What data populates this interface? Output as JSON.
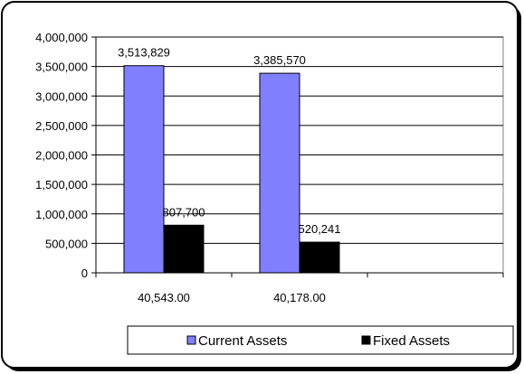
{
  "chart_data": {
    "type": "bar",
    "categories": [
      "40,543.00",
      "40,178.00",
      ""
    ],
    "series": [
      {
        "name": "Current Assets",
        "values": [
          3513829,
          3385570,
          null
        ],
        "labels": [
          "3,513,829",
          "3,385,570",
          ""
        ],
        "color": "#8080ff"
      },
      {
        "name": "Fixed Assets",
        "values": [
          807700,
          520241,
          null
        ],
        "labels": [
          "807,700",
          "520,241",
          ""
        ],
        "color": "#000000"
      }
    ],
    "y_ticks": [
      {
        "value": 0,
        "label": "0"
      },
      {
        "value": 500000,
        "label": "500,000"
      },
      {
        "value": 1000000,
        "label": "1,000,000"
      },
      {
        "value": 1500000,
        "label": "1,500,000"
      },
      {
        "value": 2000000,
        "label": "2,000,000"
      },
      {
        "value": 2500000,
        "label": "2,500,000"
      },
      {
        "value": 3000000,
        "label": "3,000,000"
      },
      {
        "value": 3500000,
        "label": "3,500,000"
      },
      {
        "value": 4000000,
        "label": "4,000,000"
      }
    ],
    "ylim": [
      0,
      4000000
    ],
    "grid": true,
    "legend_position": "bottom-right",
    "title": "",
    "xlabel": "",
    "ylabel": ""
  }
}
